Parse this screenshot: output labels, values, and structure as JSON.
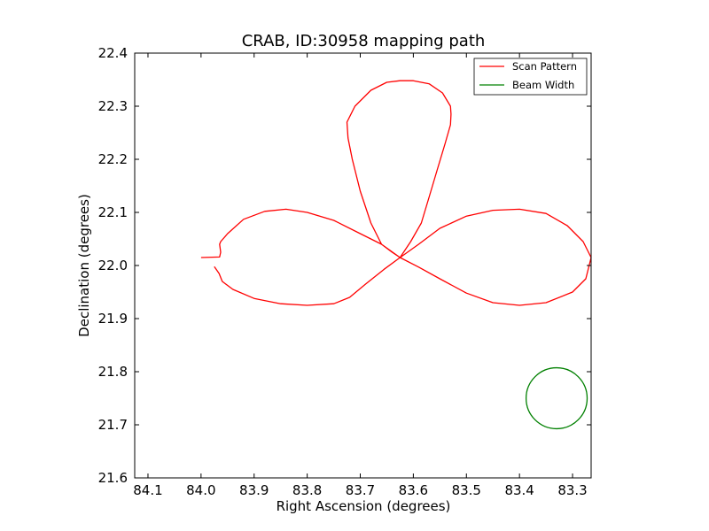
{
  "chart_data": {
    "type": "line",
    "title": "CRAB, ID:30958 mapping path",
    "xlabel": "Right Ascension (degrees)",
    "ylabel": "Declination (degrees)",
    "xlim": [
      84.125,
      83.265
    ],
    "ylim": [
      21.6,
      22.4
    ],
    "x_inverted": true,
    "xticks": [
      84.1,
      84.0,
      83.9,
      83.8,
      83.7,
      83.6,
      83.5,
      83.4,
      83.3
    ],
    "xtick_labels": [
      "84.1",
      "84.0",
      "83.9",
      "83.8",
      "83.7",
      "83.6",
      "83.5",
      "83.4",
      "83.3"
    ],
    "yticks": [
      21.6,
      21.7,
      21.8,
      21.9,
      22.0,
      22.1,
      22.2,
      22.3,
      22.4
    ],
    "ytick_labels": [
      "21.6",
      "21.7",
      "21.8",
      "21.9",
      "22.0",
      "22.1",
      "22.2",
      "22.3",
      "22.4"
    ],
    "grid": false,
    "legend_position": "top-right",
    "series": [
      {
        "name": "Scan Pattern",
        "color": "#ff0000",
        "x": [
          84.0,
          83.965,
          83.963,
          83.965,
          83.963,
          83.95,
          83.92,
          83.88,
          83.84,
          83.8,
          83.75,
          83.7,
          83.66,
          83.625,
          83.59,
          83.55,
          83.5,
          83.45,
          83.4,
          83.35,
          83.31,
          83.28,
          83.265,
          83.275,
          83.3,
          83.35,
          83.4,
          83.45,
          83.5,
          83.55,
          83.59,
          83.625,
          83.605,
          83.585,
          83.57,
          83.555,
          83.54,
          83.53,
          83.529,
          83.53,
          83.545,
          83.57,
          83.6,
          83.625,
          83.65,
          83.68,
          83.71,
          83.725,
          83.723,
          83.715,
          83.7,
          83.68,
          83.66,
          83.64,
          83.625,
          83.655,
          83.69,
          83.72,
          83.75,
          83.8,
          83.85,
          83.9,
          83.94,
          83.96,
          83.966,
          83.975
        ],
        "y": [
          22.015,
          22.016,
          22.025,
          22.04,
          22.045,
          22.06,
          22.087,
          22.102,
          22.106,
          22.1,
          22.085,
          22.06,
          22.04,
          22.015,
          22.04,
          22.07,
          22.093,
          22.104,
          22.106,
          22.098,
          22.075,
          22.045,
          22.015,
          21.975,
          21.95,
          21.93,
          21.925,
          21.93,
          21.948,
          21.975,
          21.997,
          22.015,
          22.045,
          22.08,
          22.13,
          22.18,
          22.23,
          22.265,
          22.285,
          22.3,
          22.325,
          22.342,
          22.348,
          22.348,
          22.345,
          22.33,
          22.3,
          22.27,
          22.24,
          22.2,
          22.14,
          22.08,
          22.04,
          22.025,
          22.015,
          21.993,
          21.965,
          21.94,
          21.928,
          21.925,
          21.928,
          21.938,
          21.955,
          21.97,
          21.985,
          21.998
        ]
      },
      {
        "name": "Beam Width",
        "color": "#008000",
        "center": [
          83.33,
          21.75
        ],
        "radius": 0.0575
      }
    ]
  }
}
